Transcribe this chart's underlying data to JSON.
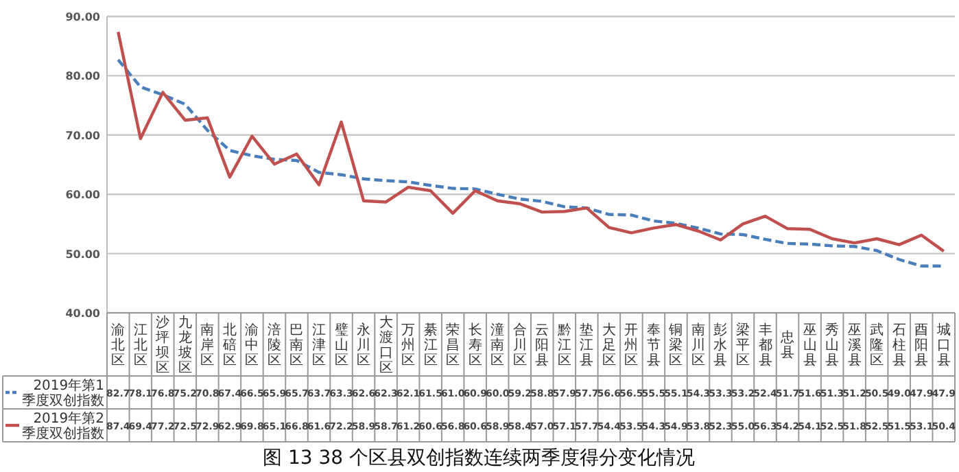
{
  "chart_data": {
    "type": "line",
    "title": "图 13 38 个区县双创指数连续两季度得分变化情况",
    "categories": [
      "渝北区",
      "江北区",
      "沙坪坝区",
      "九龙坡区",
      "南岸区",
      "北碚区",
      "渝中区",
      "涪陵区",
      "巴南区",
      "江津区",
      "璧山区",
      "永川区",
      "大渡口区",
      "万州区",
      "綦江区",
      "荣昌区",
      "长寿区",
      "潼南区",
      "合川区",
      "云阳县",
      "黔江区",
      "垫江县",
      "大足区",
      "开州区",
      "奉节县",
      "铜梁区",
      "南川区",
      "彭水县",
      "梁平区",
      "丰都县",
      "忠县",
      "巫山县",
      "秀山县",
      "巫溪县",
      "武隆区",
      "石柱县",
      "酉阳县",
      "城口县"
    ],
    "series": [
      {
        "name": "2019年第1季度双创指数",
        "color": "#4a7ebb",
        "line_style": "dashed",
        "values": [
          82.7,
          78.1,
          76.8,
          75.2,
          70.8,
          67.4,
          66.5,
          65.9,
          65.7,
          63.7,
          63.3,
          62.6,
          62.3,
          62.1,
          61.5,
          61.0,
          60.9,
          60.0,
          59.2,
          58.8,
          57.9,
          57.7,
          56.6,
          56.5,
          55.5,
          55.1,
          54.3,
          53.3,
          53.2,
          52.4,
          51.7,
          51.6,
          51.3,
          51.2,
          50.5,
          49.0,
          47.9,
          47.9
        ],
        "value_labels": [
          "82.7",
          "78.1",
          "76.8",
          "75.2",
          "70.8",
          "67.4",
          "66.5",
          "65.9",
          "65.7",
          "63.7",
          "63.3",
          "62.6",
          "62.3",
          "62.1",
          "61.5",
          "61.0",
          "60.9",
          "60.0",
          "59.2",
          "58.8",
          "57.9",
          "57.7",
          "56.6",
          "56.5",
          "55.5",
          "55.1",
          "54.3",
          "53.3",
          "53.2",
          "52.4",
          "51.7",
          "51.6",
          "51.3",
          "51.2",
          "50.5",
          "49.0",
          "47.9",
          "47.9"
        ]
      },
      {
        "name": "2019年第2季度双创指数",
        "color": "#c0504d",
        "line_style": "solid",
        "values": [
          87.4,
          69.4,
          77.2,
          72.5,
          72.9,
          62.9,
          69.8,
          65.1,
          66.8,
          61.6,
          72.2,
          58.9,
          58.7,
          61.2,
          60.6,
          56.8,
          60.6,
          58.9,
          58.4,
          57.0,
          57.1,
          57.7,
          54.4,
          53.5,
          54.3,
          54.9,
          53.8,
          52.3,
          55.0,
          56.3,
          54.2,
          54.1,
          52.5,
          51.8,
          52.5,
          51.5,
          53.1,
          50.4
        ],
        "value_labels": [
          "87.4",
          "69.4",
          "77.2",
          "72.5",
          "72.9",
          "62.9",
          "69.8",
          "65.1",
          "66.8",
          "61.6",
          "72.2",
          "58.9",
          "58.7",
          "61.2",
          "60.6",
          "56.8",
          "60.6",
          "58.9",
          "58.4",
          "57.0",
          "57.1",
          "57.7",
          "54.4",
          "53.5",
          "54.3",
          "54.9",
          "53.8",
          "52.3",
          "55.0",
          "56.3",
          "54.2",
          "54.1",
          "52.5",
          "51.8",
          "52.5",
          "51.5",
          "53.1",
          "50.4"
        ]
      }
    ],
    "ylim": [
      40,
      90
    ],
    "yticks": [
      {
        "value": 40,
        "label": "40.00"
      },
      {
        "value": 50,
        "label": "50.00"
      },
      {
        "value": 60,
        "label": "60.00"
      },
      {
        "value": 70,
        "label": "70.00"
      },
      {
        "value": 80,
        "label": "80.00"
      },
      {
        "value": 90,
        "label": "90.00"
      }
    ],
    "grid": "y",
    "legend": "bottom left"
  }
}
